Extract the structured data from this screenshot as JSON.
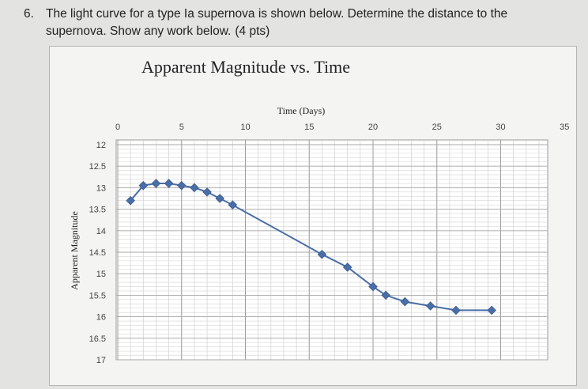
{
  "question": {
    "number": "6.",
    "line1": "The light curve for a type Ia supernova is shown below. Determine the distance to the",
    "line2": "supernova. Show any work below.",
    "points": "(4 pts)"
  },
  "chart_data": {
    "type": "line",
    "title": "Apparent Magnitude vs. Time",
    "xlabel": "Time (Days)",
    "ylabel": "Apparent Magnitude",
    "xlim": [
      0,
      35
    ],
    "ylim": [
      12,
      17
    ],
    "y_inverted": true,
    "x_axis_position": "top",
    "x_ticks": [
      "0",
      "5",
      "10",
      "15",
      "20",
      "25",
      "30",
      "35"
    ],
    "y_ticks": [
      "12",
      "12.5",
      "13",
      "13.5",
      "14",
      "14.5",
      "15",
      "15.5",
      "16",
      "16.5",
      "17"
    ],
    "grid": true,
    "legend": false,
    "series_color": "#4a6ea8",
    "series": [
      {
        "x": [
          1,
          2,
          3,
          4,
          5,
          6,
          7,
          8,
          9,
          16,
          18,
          20,
          21,
          22.5,
          24.5,
          26.5,
          29.3
        ],
        "y": [
          13.3,
          12.95,
          12.9,
          12.9,
          12.95,
          13.0,
          13.1,
          13.25,
          13.4,
          14.55,
          14.85,
          15.3,
          15.5,
          15.65,
          15.75,
          15.85,
          15.85
        ]
      }
    ]
  }
}
